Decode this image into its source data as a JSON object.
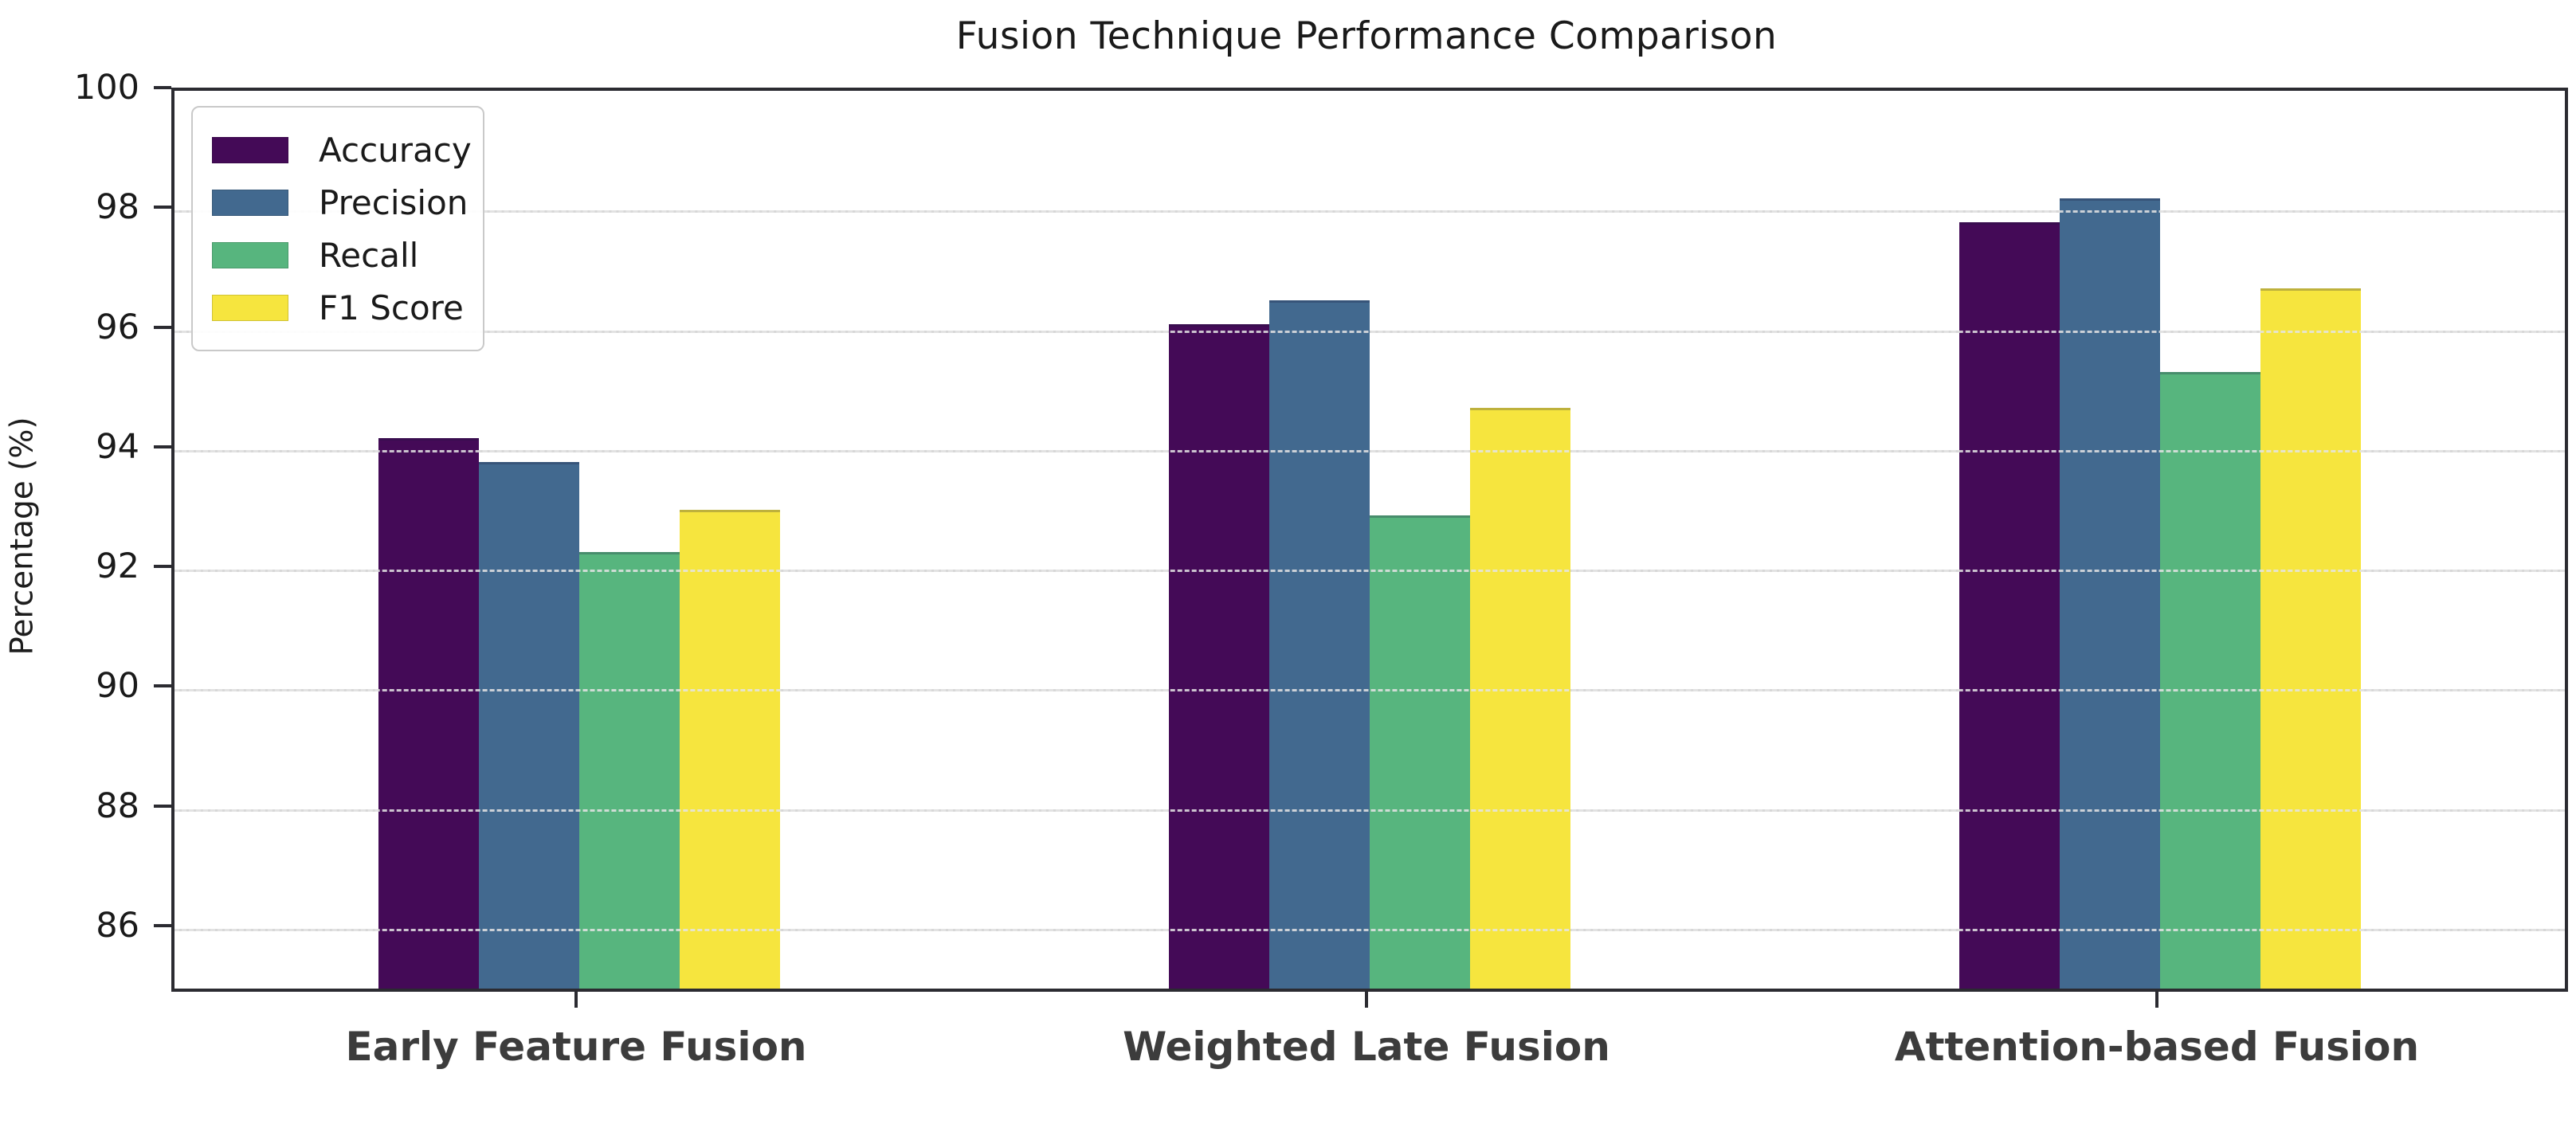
{
  "figure": {
    "title": "Fusion Technique Performance Comparison",
    "ylabel": "Percentage (%)"
  },
  "chart_data": {
    "type": "bar",
    "title": "Fusion Technique Performance Comparison",
    "xlabel": "",
    "ylabel": "Percentage (%)",
    "categories": [
      "Early Feature Fusion",
      "Weighted Late Fusion",
      "Attention-based Fusion"
    ],
    "series": [
      {
        "name": "Accuracy",
        "color": "#440a57",
        "values": [
          94.2,
          96.1,
          97.8
        ]
      },
      {
        "name": "Precision",
        "color": "#42698f",
        "values": [
          93.8,
          96.5,
          98.2
        ]
      },
      {
        "name": "Recall",
        "color": "#57b57e",
        "values": [
          92.3,
          92.9,
          95.3
        ]
      },
      {
        "name": "F1 Score",
        "color": "#f6e53e",
        "values": [
          93.0,
          94.7,
          96.7
        ]
      }
    ],
    "ylim": [
      85,
      100
    ],
    "yticks": [
      86,
      88,
      90,
      92,
      94,
      96,
      98,
      100
    ],
    "grid": true,
    "grid_style": "dashed-over-bars",
    "legend_position": "upper left",
    "bar_edge": true
  }
}
